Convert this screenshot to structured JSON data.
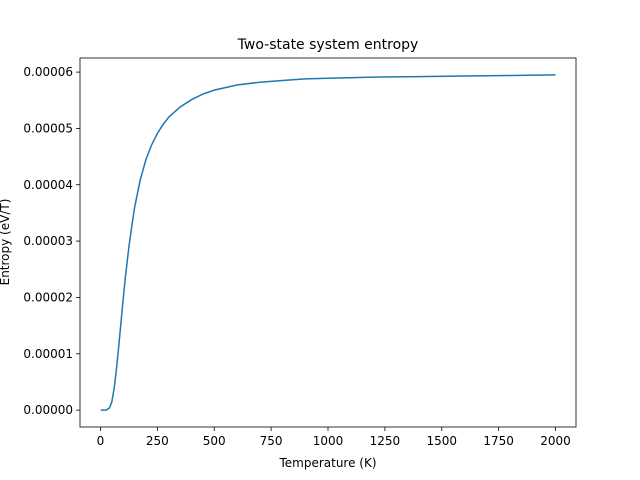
{
  "chart_data": {
    "type": "line",
    "title": "Two-state system entropy",
    "xlabel": "Temperature (K)",
    "ylabel": "Entropy (eV/T)",
    "xlim": [
      -90,
      2090
    ],
    "ylim": [
      -3e-06,
      6.25e-05
    ],
    "xticks": [
      0,
      250,
      500,
      750,
      1000,
      1250,
      1500,
      1750,
      2000
    ],
    "xtick_labels": [
      "0",
      "250",
      "500",
      "750",
      "1000",
      "1250",
      "1500",
      "1750",
      "2000"
    ],
    "yticks": [
      0,
      1e-05,
      2e-05,
      3e-05,
      4e-05,
      5e-05,
      6e-05
    ],
    "ytick_labels": [
      "0.00000",
      "0.00001",
      "0.00002",
      "0.00003",
      "0.00004",
      "0.00005",
      "0.00006"
    ],
    "grid": false,
    "legend": "none",
    "series": [
      {
        "color": "#1f77b4",
        "x": [
          1,
          25,
          40,
          50,
          60,
          70,
          80,
          90,
          100,
          110,
          125,
          140,
          150,
          175,
          200,
          225,
          250,
          275,
          300,
          350,
          400,
          450,
          500,
          600,
          700,
          800,
          900,
          1000,
          1200,
          1400,
          1600,
          1800,
          2000
        ],
        "y": [
          0.0,
          0.0,
          4e-07,
          1.5e-06,
          3.8e-06,
          7.2e-06,
          1.12e-05,
          1.55e-05,
          1.98e-05,
          2.38e-05,
          2.9e-05,
          3.33e-05,
          3.6e-05,
          4.09e-05,
          4.45e-05,
          4.71e-05,
          4.91e-05,
          5.07e-05,
          5.2e-05,
          5.38e-05,
          5.51e-05,
          5.61e-05,
          5.68e-05,
          5.77e-05,
          5.82e-05,
          5.85e-05,
          5.88e-05,
          5.89e-05,
          5.91e-05,
          5.92e-05,
          5.93e-05,
          5.94e-05,
          5.95e-05
        ]
      }
    ]
  }
}
